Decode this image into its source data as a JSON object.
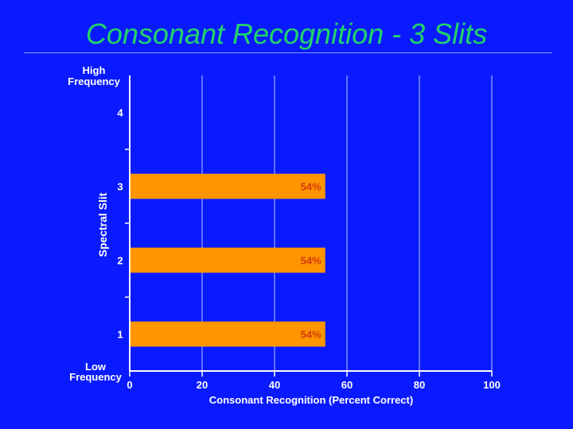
{
  "slide": {
    "title": "Consonant Recognition - 3 Slits"
  },
  "colors": {
    "background": "#0a1aff",
    "title": "#22d36a",
    "bar": "#ff9500",
    "bar_label": "#d43b0a",
    "gridline": "#b9c7ff"
  },
  "chart_data": {
    "type": "bar",
    "orientation": "horizontal",
    "categories": [
      "1",
      "2",
      "3",
      "4"
    ],
    "values": [
      54,
      54,
      54,
      null
    ],
    "data_labels": [
      "54%",
      "54%",
      "54%",
      ""
    ],
    "xlabel": "Consonant Recognition (Percent Correct)",
    "ylabel": "Spectral Slit",
    "y_top_label": "High Frequency",
    "y_bottom_label": "Low Frequency",
    "xlim": [
      0,
      100
    ],
    "xticks": [
      0,
      20,
      40,
      60,
      80,
      100
    ],
    "grid": true
  }
}
